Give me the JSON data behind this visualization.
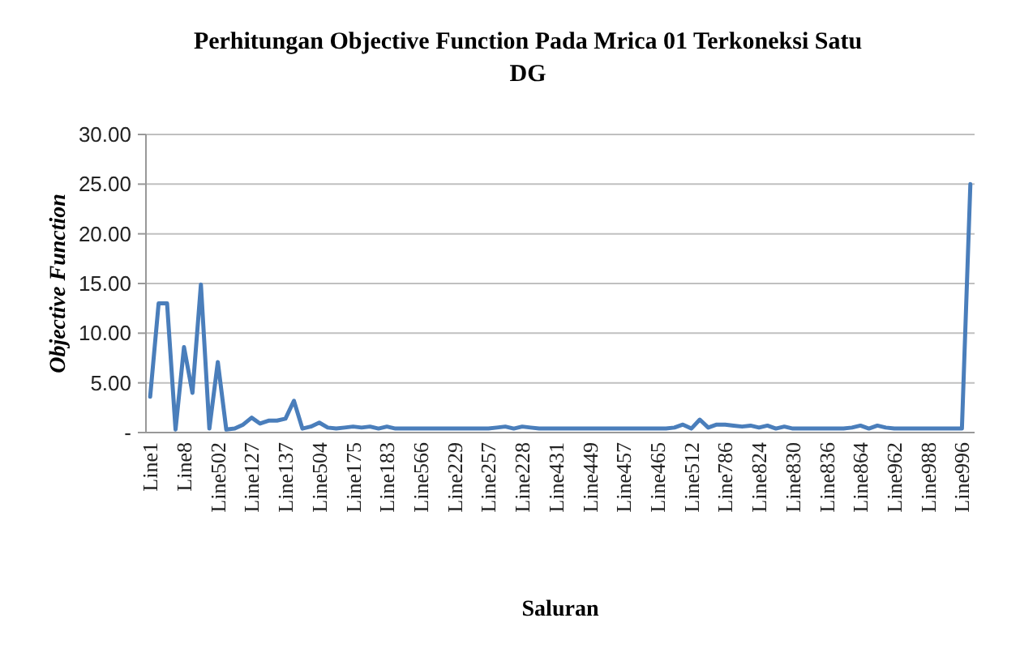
{
  "chart_data": {
    "type": "line",
    "title": "Perhitungan Objective Function Pada Mrica 01 Terkoneksi Satu DG",
    "xlabel": "Saluran",
    "ylabel": "Objective Function",
    "categories": [
      "Line1",
      null,
      null,
      null,
      "Line8",
      null,
      null,
      null,
      "Line502",
      null,
      null,
      null,
      "Line127",
      null,
      null,
      null,
      "Line137",
      null,
      null,
      null,
      "Line504",
      null,
      null,
      null,
      "Line175",
      null,
      null,
      null,
      "Line183",
      null,
      null,
      null,
      "Line566",
      null,
      null,
      null,
      "Line229",
      null,
      null,
      null,
      "Line257",
      null,
      null,
      null,
      "Line228",
      null,
      null,
      null,
      "Line431",
      null,
      null,
      null,
      "Line449",
      null,
      null,
      null,
      "Line457",
      null,
      null,
      null,
      "Line465",
      null,
      null,
      null,
      "Line512",
      null,
      null,
      null,
      "Line786",
      null,
      null,
      null,
      "Line824",
      null,
      null,
      null,
      "Line830",
      null,
      null,
      null,
      "Line836",
      null,
      null,
      null,
      "Line864",
      null,
      null,
      null,
      "Line962",
      null,
      null,
      null,
      "Line988",
      null,
      null,
      null,
      "Line996",
      null
    ],
    "series": [
      {
        "color": "#4a7ebb",
        "values": [
          3.6,
          13.0,
          13.0,
          0.3,
          8.6,
          4.0,
          14.9,
          0.4,
          7.1,
          0.3,
          0.4,
          0.8,
          1.5,
          0.9,
          1.2,
          1.2,
          1.4,
          3.2,
          0.4,
          0.6,
          1.0,
          0.5,
          0.4,
          0.5,
          0.6,
          0.5,
          0.6,
          0.4,
          0.6,
          0.4,
          0.4,
          0.4,
          0.4,
          0.4,
          0.4,
          0.4,
          0.4,
          0.4,
          0.4,
          0.4,
          0.4,
          0.5,
          0.6,
          0.4,
          0.6,
          0.5,
          0.4,
          0.4,
          0.4,
          0.4,
          0.4,
          0.4,
          0.4,
          0.4,
          0.4,
          0.4,
          0.4,
          0.4,
          0.4,
          0.4,
          0.4,
          0.4,
          0.5,
          0.8,
          0.4,
          1.3,
          0.5,
          0.8,
          0.8,
          0.7,
          0.6,
          0.7,
          0.5,
          0.7,
          0.4,
          0.6,
          0.4,
          0.4,
          0.4,
          0.4,
          0.4,
          0.4,
          0.4,
          0.5,
          0.7,
          0.4,
          0.7,
          0.5,
          0.4,
          0.4,
          0.4,
          0.4,
          0.4,
          0.4,
          0.4,
          0.4,
          0.4,
          25.0
        ]
      }
    ],
    "ylim": [
      0,
      30
    ],
    "yticks": [
      {
        "value": 0,
        "label": "-"
      },
      {
        "value": 5,
        "label": "5.00"
      },
      {
        "value": 10,
        "label": "10.00"
      },
      {
        "value": 15,
        "label": "15.00"
      },
      {
        "value": 20,
        "label": "20.00"
      },
      {
        "value": 25,
        "label": "25.00"
      },
      {
        "value": 30,
        "label": "30.00"
      }
    ],
    "grid": "y",
    "marker": "none",
    "line_style": "solid"
  }
}
